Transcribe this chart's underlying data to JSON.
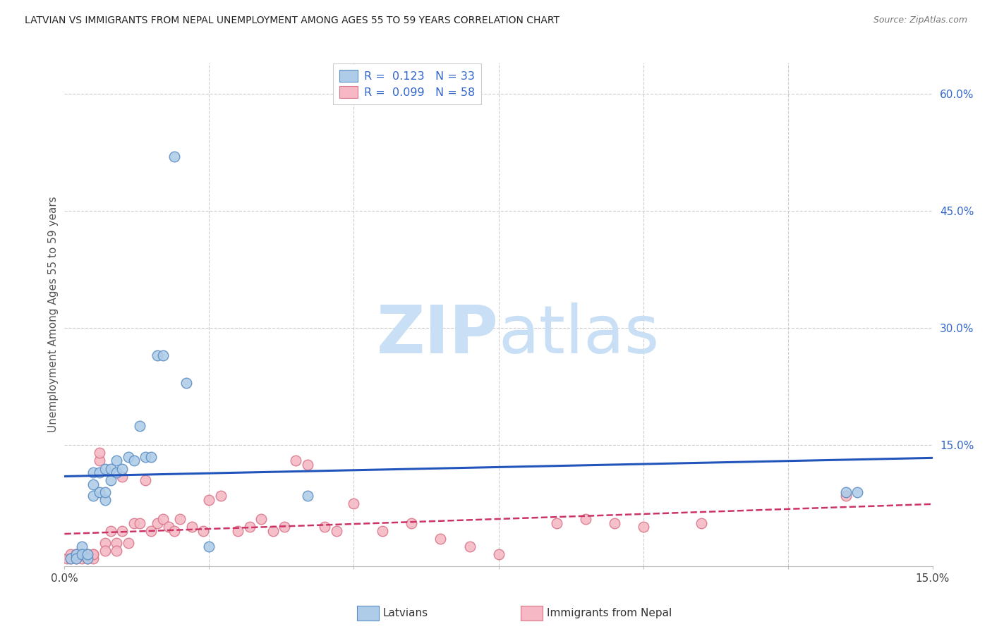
{
  "title": "LATVIAN VS IMMIGRANTS FROM NEPAL UNEMPLOYMENT AMONG AGES 55 TO 59 YEARS CORRELATION CHART",
  "source": "Source: ZipAtlas.com",
  "ylabel": "Unemployment Among Ages 55 to 59 years",
  "xmin": 0.0,
  "xmax": 0.15,
  "ymin": -0.005,
  "ymax": 0.64,
  "R_latvian": "0.123",
  "N_latvian": "33",
  "R_nepal": "0.099",
  "N_nepal": "58",
  "legend_label_latvian": "Latvians",
  "legend_label_nepal": "Immigrants from Nepal",
  "latvian_color": "#aecce8",
  "latvian_edge_color": "#5b8ec4",
  "nepal_color": "#f5b8c4",
  "nepal_edge_color": "#d9758a",
  "trend_latvian_color": "#2255bb",
  "trend_nepal_color": "#cc3366",
  "y_right_tick_color": "#3366cc",
  "latvian_x": [
    0.001,
    0.002,
    0.002,
    0.003,
    0.003,
    0.004,
    0.004,
    0.005,
    0.005,
    0.005,
    0.006,
    0.006,
    0.007,
    0.007,
    0.007,
    0.008,
    0.008,
    0.009,
    0.009,
    0.01,
    0.011,
    0.012,
    0.013,
    0.014,
    0.015,
    0.016,
    0.017,
    0.019,
    0.021,
    0.025,
    0.042,
    0.135,
    0.137
  ],
  "latvian_y": [
    0.005,
    0.01,
    0.005,
    0.02,
    0.01,
    0.005,
    0.01,
    0.085,
    0.1,
    0.115,
    0.09,
    0.115,
    0.08,
    0.12,
    0.09,
    0.105,
    0.12,
    0.115,
    0.13,
    0.12,
    0.135,
    0.13,
    0.175,
    0.135,
    0.135,
    0.265,
    0.265,
    0.52,
    0.23,
    0.02,
    0.085,
    0.09,
    0.09
  ],
  "nepal_x": [
    0.0005,
    0.001,
    0.001,
    0.002,
    0.002,
    0.002,
    0.003,
    0.003,
    0.003,
    0.004,
    0.004,
    0.005,
    0.005,
    0.005,
    0.006,
    0.006,
    0.007,
    0.007,
    0.008,
    0.009,
    0.009,
    0.01,
    0.01,
    0.011,
    0.012,
    0.013,
    0.014,
    0.015,
    0.016,
    0.017,
    0.018,
    0.019,
    0.02,
    0.022,
    0.024,
    0.025,
    0.027,
    0.03,
    0.032,
    0.034,
    0.036,
    0.038,
    0.04,
    0.042,
    0.045,
    0.047,
    0.05,
    0.055,
    0.06,
    0.065,
    0.07,
    0.075,
    0.085,
    0.09,
    0.095,
    0.1,
    0.11,
    0.135
  ],
  "nepal_y": [
    0.005,
    0.01,
    0.005,
    0.01,
    0.005,
    0.01,
    0.01,
    0.005,
    0.01,
    0.005,
    0.01,
    0.01,
    0.005,
    0.01,
    0.13,
    0.14,
    0.025,
    0.015,
    0.04,
    0.025,
    0.015,
    0.11,
    0.04,
    0.025,
    0.05,
    0.05,
    0.105,
    0.04,
    0.05,
    0.055,
    0.045,
    0.04,
    0.055,
    0.045,
    0.04,
    0.08,
    0.085,
    0.04,
    0.045,
    0.055,
    0.04,
    0.045,
    0.13,
    0.125,
    0.045,
    0.04,
    0.075,
    0.04,
    0.05,
    0.03,
    0.02,
    0.01,
    0.05,
    0.055,
    0.05,
    0.045,
    0.05,
    0.085
  ],
  "marker_size": 110,
  "watermark_zip_color": "#c8dff5",
  "watermark_atlas_color": "#c8dff5",
  "watermark_fontsize": 68
}
